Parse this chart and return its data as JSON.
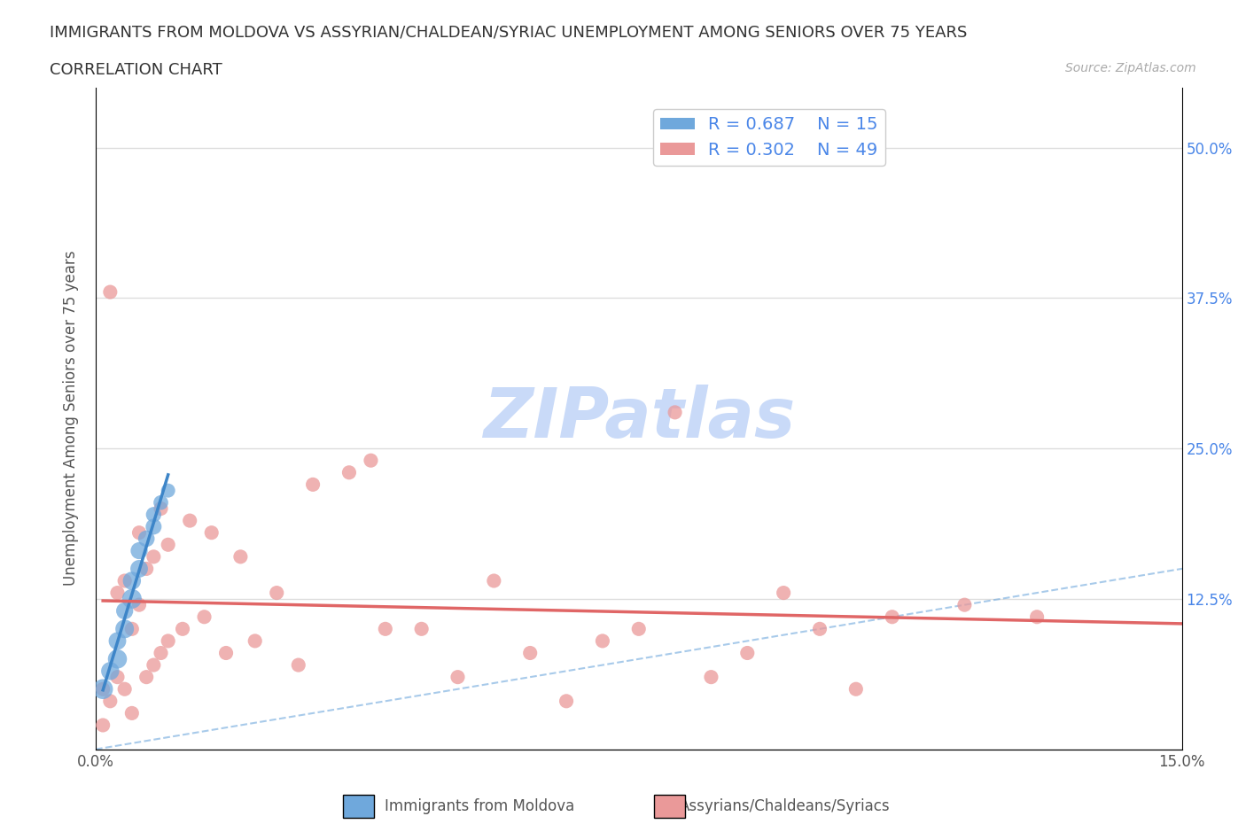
{
  "title_line1": "IMMIGRANTS FROM MOLDOVA VS ASSYRIAN/CHALDEAN/SYRIAC UNEMPLOYMENT AMONG SENIORS OVER 75 YEARS",
  "title_line2": "CORRELATION CHART",
  "source_text": "Source: ZipAtlas.com",
  "ylabel": "Unemployment Among Seniors over 75 years",
  "xlim": [
    0.0,
    0.15
  ],
  "ylim": [
    0.0,
    0.55
  ],
  "blue_color": "#6fa8dc",
  "pink_color": "#ea9999",
  "blue_trend_color": "#3d85c8",
  "pink_trend_color": "#e06666",
  "watermark_color": "#c9daf8",
  "legend_R1": "R = 0.687",
  "legend_N1": "N = 15",
  "legend_R2": "R = 0.302",
  "legend_N2": "N = 49",
  "legend_label1": "Immigrants from Moldova",
  "legend_label2": "Assyrians/Chaldeans/Syriacs",
  "blue_dots_x": [
    0.001,
    0.002,
    0.003,
    0.003,
    0.004,
    0.004,
    0.005,
    0.005,
    0.006,
    0.006,
    0.007,
    0.008,
    0.008,
    0.009,
    0.01
  ],
  "blue_dots_y": [
    0.05,
    0.065,
    0.075,
    0.09,
    0.1,
    0.115,
    0.125,
    0.14,
    0.15,
    0.165,
    0.175,
    0.185,
    0.195,
    0.205,
    0.215
  ],
  "blue_dots_size": [
    220,
    180,
    200,
    170,
    190,
    160,
    210,
    180,
    170,
    160,
    150,
    140,
    130,
    120,
    110
  ],
  "pink_dots_x": [
    0.001,
    0.001,
    0.002,
    0.002,
    0.003,
    0.003,
    0.004,
    0.004,
    0.005,
    0.005,
    0.006,
    0.006,
    0.007,
    0.007,
    0.008,
    0.008,
    0.009,
    0.009,
    0.01,
    0.01,
    0.012,
    0.013,
    0.015,
    0.016,
    0.018,
    0.02,
    0.022,
    0.025,
    0.028,
    0.03,
    0.035,
    0.038,
    0.04,
    0.045,
    0.05,
    0.055,
    0.06,
    0.065,
    0.07,
    0.075,
    0.08,
    0.085,
    0.09,
    0.095,
    0.1,
    0.105,
    0.11,
    0.12,
    0.13
  ],
  "pink_dots_y": [
    0.02,
    0.05,
    0.38,
    0.04,
    0.06,
    0.13,
    0.05,
    0.14,
    0.03,
    0.1,
    0.12,
    0.18,
    0.06,
    0.15,
    0.07,
    0.16,
    0.08,
    0.2,
    0.09,
    0.17,
    0.1,
    0.19,
    0.11,
    0.18,
    0.08,
    0.16,
    0.09,
    0.13,
    0.07,
    0.22,
    0.23,
    0.24,
    0.1,
    0.1,
    0.06,
    0.14,
    0.08,
    0.04,
    0.09,
    0.1,
    0.28,
    0.06,
    0.08,
    0.13,
    0.1,
    0.05,
    0.11,
    0.12,
    0.11
  ],
  "pink_dots_size": [
    90,
    90,
    90,
    90,
    90,
    90,
    90,
    90,
    90,
    90,
    90,
    90,
    90,
    90,
    90,
    90,
    90,
    90,
    90,
    90,
    90,
    90,
    90,
    90,
    90,
    90,
    90,
    90,
    90,
    90,
    90,
    90,
    90,
    90,
    90,
    90,
    90,
    90,
    90,
    90,
    90,
    90,
    90,
    90,
    90,
    90,
    90,
    90,
    90
  ]
}
